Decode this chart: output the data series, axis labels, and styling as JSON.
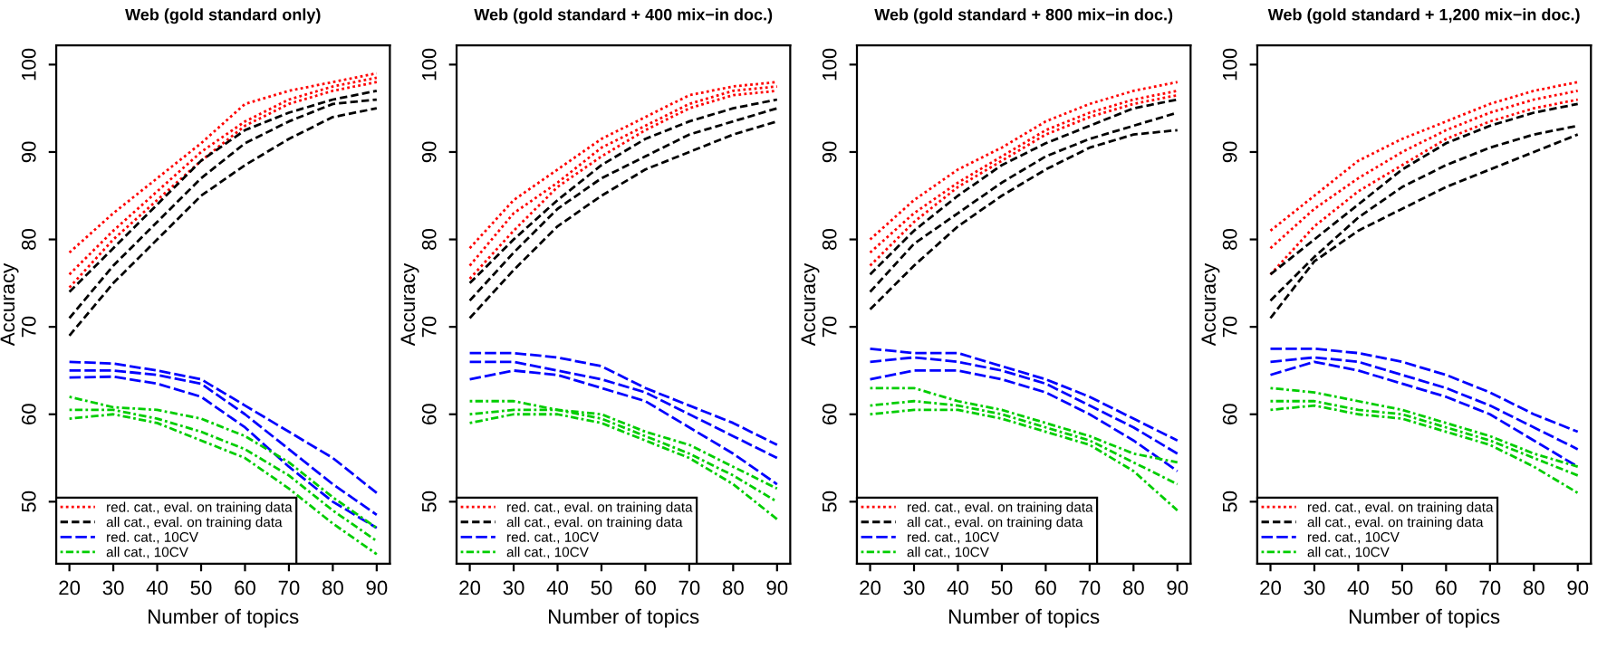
{
  "chart_data": [
    {
      "type": "line",
      "title": "Web (gold standard only)",
      "xlabel": "Number of topics",
      "ylabel": "Accuracy",
      "x": [
        20,
        30,
        40,
        50,
        60,
        70,
        80,
        90
      ],
      "xlim": [
        17,
        93
      ],
      "ylim": [
        42.9,
        102.2
      ],
      "xticks": [
        20,
        30,
        40,
        50,
        60,
        70,
        80,
        90
      ],
      "yticks": [
        50,
        60,
        70,
        80,
        90,
        100
      ],
      "grid": false,
      "legend": "bottom left",
      "series": [
        {
          "name": "red. cat., eval. on training data",
          "color": "#ff0000",
          "line_style": "dotted",
          "values": [
            78.5,
            83,
            87,
            91,
            95.5,
            97,
            98,
            99
          ]
        },
        {
          "color": "#ff0000",
          "line_style": "dotted",
          "values": [
            76,
            81,
            85.5,
            90,
            93.5,
            96,
            97.5,
            98.5
          ]
        },
        {
          "color": "#ff0000",
          "line_style": "dotted",
          "values": [
            74.5,
            80,
            84.5,
            89,
            93,
            95.5,
            97,
            98
          ]
        },
        {
          "name": "all cat., eval. on training data",
          "color": "#000000",
          "line_style": "dashed",
          "values": [
            74,
            79,
            84,
            89,
            92.5,
            94.5,
            96,
            97
          ]
        },
        {
          "color": "#000000",
          "line_style": "dashed",
          "values": [
            71,
            77,
            82,
            87,
            91,
            93.5,
            95.5,
            96
          ]
        },
        {
          "color": "#000000",
          "line_style": "dashed",
          "values": [
            69,
            75,
            80,
            85,
            88.5,
            91.5,
            94,
            95
          ]
        },
        {
          "name": "red. cat., 10CV",
          "color": "#0000ff",
          "line_style": "longdash",
          "values": [
            66,
            65.8,
            65,
            64,
            61,
            58,
            55,
            51
          ]
        },
        {
          "color": "#0000ff",
          "line_style": "longdash",
          "values": [
            65,
            65,
            64.5,
            63.5,
            60,
            56,
            52,
            48.5
          ]
        },
        {
          "color": "#0000ff",
          "line_style": "longdash",
          "values": [
            64.2,
            64.3,
            63.5,
            62,
            58.5,
            54,
            50,
            47
          ]
        },
        {
          "name": "all cat., 10CV",
          "color": "#00cd00",
          "line_style": "dashdot",
          "values": [
            62,
            60.8,
            60.5,
            59.5,
            57.5,
            54.5,
            50.5,
            47
          ]
        },
        {
          "color": "#00cd00",
          "line_style": "dashdot",
          "values": [
            60.5,
            60.5,
            59.5,
            58,
            56,
            53,
            49,
            45.5
          ]
        },
        {
          "color": "#00cd00",
          "line_style": "dashdot",
          "values": [
            59.5,
            60,
            59,
            57,
            55,
            51.5,
            47.5,
            44
          ]
        }
      ]
    },
    {
      "type": "line",
      "title": "Web (gold standard + 400 mix−in doc.)",
      "xlabel": "Number of topics",
      "ylabel": "Accuracy",
      "x": [
        20,
        30,
        40,
        50,
        60,
        70,
        80,
        90
      ],
      "xlim": [
        17,
        93
      ],
      "ylim": [
        42.9,
        102.2
      ],
      "xticks": [
        20,
        30,
        40,
        50,
        60,
        70,
        80,
        90
      ],
      "yticks": [
        50,
        60,
        70,
        80,
        90,
        100
      ],
      "grid": false,
      "legend": "bottom left",
      "series": [
        {
          "name": "red. cat., eval. on training data",
          "color": "#ff0000",
          "line_style": "dotted",
          "values": [
            79,
            84.5,
            88,
            91.5,
            94,
            96.5,
            97.5,
            98
          ]
        },
        {
          "color": "#ff0000",
          "line_style": "dotted",
          "values": [
            77,
            83,
            86.5,
            90.5,
            93,
            95.5,
            97,
            97.5
          ]
        },
        {
          "color": "#ff0000",
          "line_style": "dotted",
          "values": [
            75.5,
            81,
            86,
            89.5,
            92.5,
            95,
            96.5,
            97
          ]
        },
        {
          "name": "all cat., eval. on training data",
          "color": "#000000",
          "line_style": "dashed",
          "values": [
            75,
            80,
            84.5,
            88.5,
            91.5,
            93.5,
            95,
            96
          ]
        },
        {
          "color": "#000000",
          "line_style": "dashed",
          "values": [
            73,
            78.5,
            83.5,
            87,
            89.5,
            92,
            93.5,
            95
          ]
        },
        {
          "color": "#000000",
          "line_style": "dashed",
          "values": [
            71,
            76.5,
            81.5,
            85,
            88,
            90,
            92,
            93.5
          ]
        },
        {
          "name": "red. cat., 10CV",
          "color": "#0000ff",
          "line_style": "longdash",
          "values": [
            67,
            67,
            66.5,
            65.5,
            63,
            61,
            59,
            56.5
          ]
        },
        {
          "color": "#0000ff",
          "line_style": "longdash",
          "values": [
            66,
            66,
            65,
            64,
            62.5,
            60,
            57.5,
            55
          ]
        },
        {
          "color": "#0000ff",
          "line_style": "longdash",
          "values": [
            64,
            65,
            64.5,
            63,
            61.5,
            58.5,
            55.5,
            52
          ]
        },
        {
          "name": "all cat., 10CV",
          "color": "#00cd00",
          "line_style": "dashdot",
          "values": [
            61.5,
            61.5,
            60.5,
            60,
            58,
            56.5,
            54,
            51.5
          ]
        },
        {
          "color": "#00cd00",
          "line_style": "dashdot",
          "values": [
            60,
            60.5,
            60.5,
            59.5,
            57.5,
            55.5,
            53,
            50
          ]
        },
        {
          "color": "#00cd00",
          "line_style": "dashdot",
          "values": [
            59,
            60,
            60,
            59,
            57,
            55,
            52,
            48
          ]
        }
      ]
    },
    {
      "type": "line",
      "title": "Web (gold standard + 800 mix−in doc.)",
      "xlabel": "Number of topics",
      "ylabel": "Accuracy",
      "x": [
        20,
        30,
        40,
        50,
        60,
        70,
        80,
        90
      ],
      "xlim": [
        17,
        93
      ],
      "ylim": [
        42.9,
        102.2
      ],
      "xticks": [
        20,
        30,
        40,
        50,
        60,
        70,
        80,
        90
      ],
      "yticks": [
        50,
        60,
        70,
        80,
        90,
        100
      ],
      "grid": false,
      "legend": "bottom left",
      "series": [
        {
          "name": "red. cat., eval. on training data",
          "color": "#ff0000",
          "line_style": "dotted",
          "values": [
            80,
            84.5,
            88,
            90.5,
            93.5,
            95.5,
            97,
            98
          ]
        },
        {
          "color": "#ff0000",
          "line_style": "dotted",
          "values": [
            78.5,
            83,
            86.5,
            89.5,
            92.5,
            94.5,
            96,
            97
          ]
        },
        {
          "color": "#ff0000",
          "line_style": "dotted",
          "values": [
            77,
            82,
            86,
            89,
            92,
            94,
            95.5,
            96.5
          ]
        },
        {
          "name": "all cat., eval. on training data",
          "color": "#000000",
          "line_style": "dashed",
          "values": [
            76,
            81,
            85,
            88.5,
            91,
            93,
            95,
            96
          ]
        },
        {
          "color": "#000000",
          "line_style": "dashed",
          "values": [
            74,
            79.5,
            83,
            86.5,
            89.5,
            91.5,
            93,
            94.5
          ]
        },
        {
          "color": "#000000",
          "line_style": "dashed",
          "values": [
            72,
            77,
            81.5,
            85,
            88,
            90.5,
            92,
            92.5
          ]
        },
        {
          "name": "red. cat., 10CV",
          "color": "#0000ff",
          "line_style": "longdash",
          "values": [
            67.5,
            67,
            67,
            65.5,
            64,
            62,
            59.5,
            57
          ]
        },
        {
          "color": "#0000ff",
          "line_style": "longdash",
          "values": [
            66,
            66.5,
            66,
            65,
            63.5,
            61,
            58.5,
            55.5
          ]
        },
        {
          "color": "#0000ff",
          "line_style": "longdash",
          "values": [
            64,
            65,
            65,
            64,
            62.5,
            60,
            57,
            53.5
          ]
        },
        {
          "name": "all cat., 10CV",
          "color": "#00cd00",
          "line_style": "dashdot",
          "values": [
            63,
            63,
            61.5,
            60.5,
            59,
            57.5,
            55.5,
            54.5
          ]
        },
        {
          "color": "#00cd00",
          "line_style": "dashdot",
          "values": [
            61,
            61.5,
            61,
            60,
            58.5,
            57,
            54.5,
            52
          ]
        },
        {
          "color": "#00cd00",
          "line_style": "dashdot",
          "values": [
            60,
            60.5,
            60.5,
            59.5,
            58,
            56.5,
            53.5,
            49
          ]
        }
      ]
    },
    {
      "type": "line",
      "title": "Web (gold standard + 1,200 mix−in doc.)",
      "xlabel": "Number of topics",
      "ylabel": "Accuracy",
      "x": [
        20,
        30,
        40,
        50,
        60,
        70,
        80,
        90
      ],
      "xlim": [
        17,
        93
      ],
      "ylim": [
        42.9,
        102.2
      ],
      "xticks": [
        20,
        30,
        40,
        50,
        60,
        70,
        80,
        90
      ],
      "yticks": [
        50,
        60,
        70,
        80,
        90,
        100
      ],
      "grid": false,
      "legend": "bottom left",
      "series": [
        {
          "name": "red. cat., eval. on training data",
          "color": "#ff0000",
          "line_style": "dotted",
          "values": [
            81,
            85,
            89,
            91.5,
            93.5,
            95.5,
            97,
            98
          ]
        },
        {
          "color": "#ff0000",
          "line_style": "dotted",
          "values": [
            79,
            83.5,
            87,
            90,
            92.5,
            94.5,
            96,
            97
          ]
        },
        {
          "color": "#ff0000",
          "line_style": "dotted",
          "values": [
            76,
            81.5,
            85.5,
            88.5,
            91.5,
            93.5,
            95,
            96
          ]
        },
        {
          "name": "all cat., eval. on training data",
          "color": "#000000",
          "line_style": "dashed",
          "values": [
            76,
            80,
            84,
            88,
            91,
            93,
            94.5,
            95.5
          ]
        },
        {
          "color": "#000000",
          "line_style": "dashed",
          "values": [
            73,
            78,
            82.5,
            86,
            88.5,
            90.5,
            92,
            93
          ]
        },
        {
          "color": "#000000",
          "line_style": "dashed",
          "values": [
            71,
            77.5,
            81,
            83.5,
            86,
            88,
            90,
            92
          ]
        },
        {
          "name": "red. cat., 10CV",
          "color": "#0000ff",
          "line_style": "longdash",
          "values": [
            67.5,
            67.5,
            67,
            66,
            64.5,
            62.5,
            60,
            58
          ]
        },
        {
          "color": "#0000ff",
          "line_style": "longdash",
          "values": [
            66,
            66.5,
            66,
            64.5,
            63,
            61,
            58.5,
            56
          ]
        },
        {
          "color": "#0000ff",
          "line_style": "longdash",
          "values": [
            64.5,
            66,
            65,
            63.5,
            62,
            60,
            57,
            54
          ]
        },
        {
          "name": "all cat., 10CV",
          "color": "#00cd00",
          "line_style": "dashdot",
          "values": [
            63,
            62.5,
            61.5,
            60.5,
            59,
            57.5,
            55.5,
            54
          ]
        },
        {
          "color": "#00cd00",
          "line_style": "dashdot",
          "values": [
            61.5,
            61.5,
            60.5,
            60,
            58.5,
            57,
            55,
            53
          ]
        },
        {
          "color": "#00cd00",
          "line_style": "dashdot",
          "values": [
            60.5,
            61,
            60,
            59.5,
            58,
            56.5,
            54,
            51
          ]
        }
      ]
    }
  ]
}
